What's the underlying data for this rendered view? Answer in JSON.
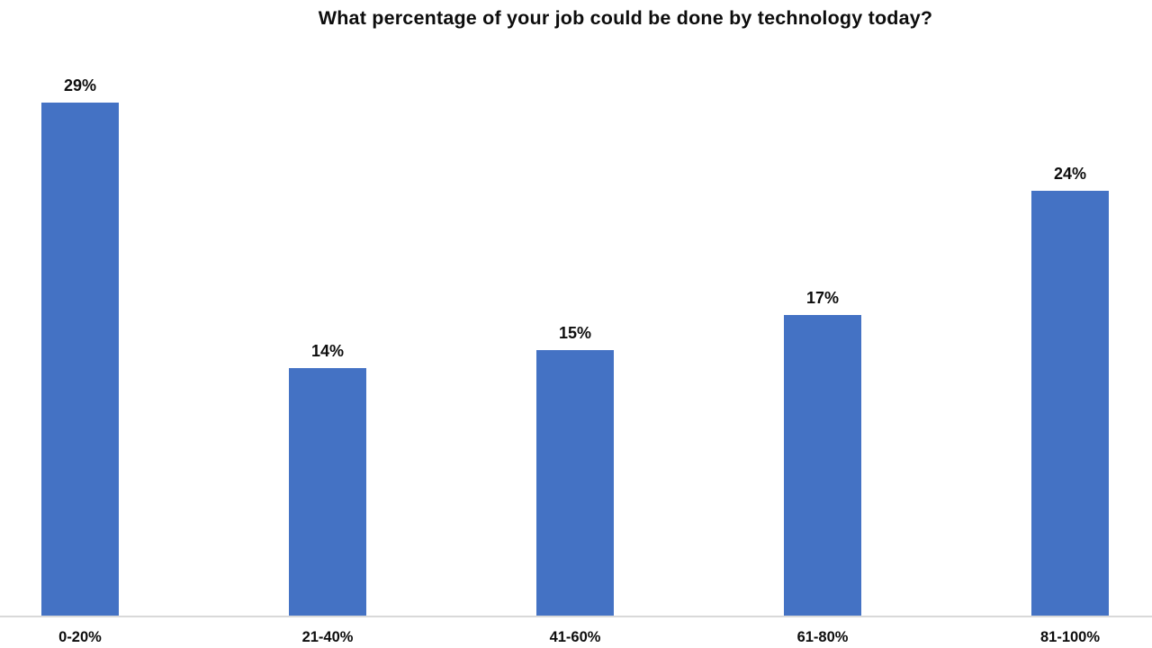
{
  "chart_data": {
    "type": "bar",
    "title": "What percentage of your job could be done by technology today?",
    "categories": [
      "0-20%",
      "21-40%",
      "41-60%",
      "61-80%",
      "81-100%"
    ],
    "values": [
      29,
      14,
      15,
      17,
      24
    ],
    "data_labels": [
      "29%",
      "14%",
      "15%",
      "17%",
      "24%"
    ],
    "xlabel": "",
    "ylabel": "",
    "ylim": [
      0,
      30
    ],
    "grid": false,
    "legend": false,
    "y_axis_visible": false,
    "bar_color": "#4472C4",
    "axis_line_color": "#D9D9D9",
    "text_color": "#0d0d0d",
    "background_color": "#FFFFFF"
  }
}
